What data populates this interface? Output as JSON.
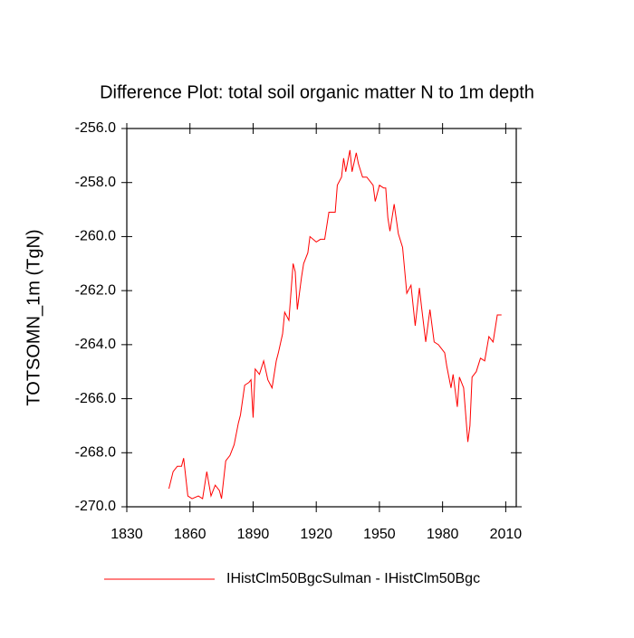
{
  "chart_data": {
    "type": "line",
    "title": "Difference Plot: total soil organic matter N to 1m depth",
    "y_label": "TOTSOMN_1m  (TgN)",
    "x": [
      1850,
      1852,
      1854,
      1856,
      1857,
      1859,
      1861,
      1864,
      1866,
      1868,
      1870,
      1872,
      1874,
      1875,
      1877,
      1879,
      1881,
      1883,
      1884,
      1886,
      1888,
      1889,
      1890,
      1891,
      1893,
      1895,
      1897,
      1899,
      1901,
      1902,
      1904,
      1905,
      1907,
      1909,
      1910,
      1911,
      1913,
      1914,
      1916,
      1917,
      1920,
      1922,
      1924,
      1926,
      1928,
      1929,
      1930,
      1932,
      1933,
      1934,
      1936,
      1937,
      1939,
      1940,
      1942,
      1944,
      1946,
      1947,
      1948,
      1950,
      1952,
      1953,
      1954,
      1955,
      1957,
      1959,
      1961,
      1963,
      1965,
      1967,
      1969,
      1970,
      1972,
      1974,
      1976,
      1978,
      1979,
      1981,
      1982,
      1984,
      1985,
      1987,
      1988,
      1989,
      1990,
      1992,
      1993,
      1994,
      1996,
      1998,
      2000,
      2002,
      2004,
      2006,
      2008
    ],
    "series": [
      {
        "name": "IHistClm50BgcSulman - IHistClm50Bgc",
        "color": "#ff0000",
        "values": [
          -269.33,
          -268.7,
          -268.5,
          -268.5,
          -268.2,
          -269.6,
          -269.7,
          -269.6,
          -269.7,
          -268.7,
          -269.6,
          -269.2,
          -269.4,
          -269.7,
          -268.3,
          -268.1,
          -267.7,
          -266.9,
          -266.6,
          -265.5,
          -265.4,
          -265.3,
          -266.7,
          -264.9,
          -265.1,
          -264.6,
          -265.3,
          -265.6,
          -264.6,
          -264.3,
          -263.6,
          -262.8,
          -263.1,
          -261.0,
          -261.3,
          -262.7,
          -261.5,
          -261.0,
          -260.6,
          -260.0,
          -260.2,
          -260.1,
          -260.1,
          -259.1,
          -259.1,
          -259.1,
          -258.1,
          -257.8,
          -257.1,
          -257.6,
          -256.8,
          -257.6,
          -256.9,
          -257.3,
          -257.8,
          -257.8,
          -258.0,
          -258.1,
          -258.7,
          -258.1,
          -258.2,
          -258.2,
          -259.3,
          -259.8,
          -258.8,
          -259.9,
          -260.4,
          -262.1,
          -261.8,
          -263.3,
          -261.9,
          -262.6,
          -263.9,
          -262.7,
          -263.9,
          -264.0,
          -264.1,
          -264.3,
          -264.8,
          -265.6,
          -265.1,
          -266.3,
          -265.2,
          -265.4,
          -265.6,
          -267.6,
          -267.0,
          -265.2,
          -265.0,
          -264.5,
          -264.6,
          -263.7,
          -263.9,
          -262.9,
          -262.9
        ]
      }
    ],
    "xlim": [
      1830,
      2015
    ],
    "xticks": [
      1830,
      1860,
      1890,
      1920,
      1950,
      1980,
      2010
    ],
    "ylim": [
      -270,
      -256
    ],
    "yticks": [
      {
        "value": -270,
        "label": "-270.0"
      },
      {
        "value": -268,
        "label": "-268.0"
      },
      {
        "value": -266,
        "label": "-266.0"
      },
      {
        "value": -264,
        "label": "-264.0"
      },
      {
        "value": -262,
        "label": "-262.0"
      },
      {
        "value": -260,
        "label": "-260.0"
      },
      {
        "value": -258,
        "label": "-258.0"
      },
      {
        "value": -256,
        "label": "-256.0"
      }
    ]
  }
}
